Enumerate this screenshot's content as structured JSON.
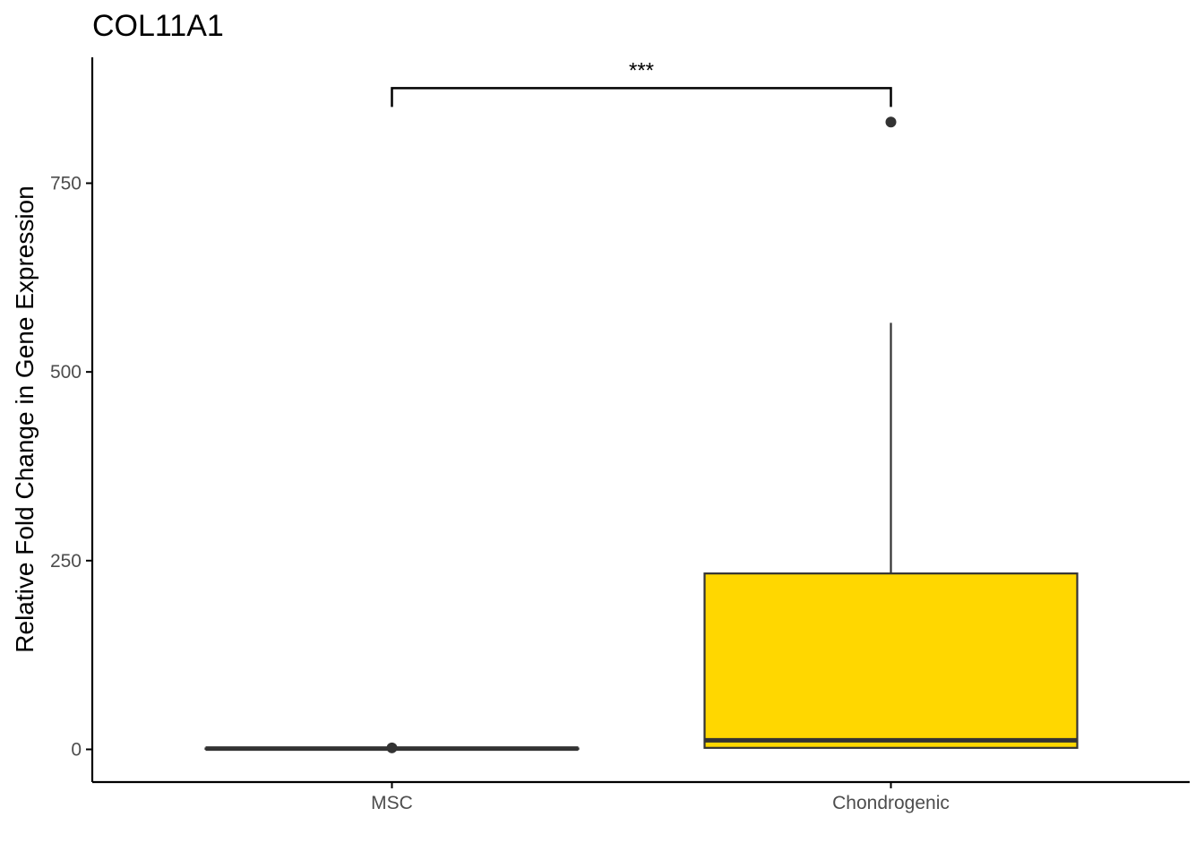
{
  "chart_data": {
    "type": "box",
    "title": "COL11A1",
    "xlabel": "",
    "ylabel": "Relative Fold Change in Gene Expression",
    "categories": [
      "MSC",
      "Chondrogenic"
    ],
    "yticks": [
      0,
      250,
      500,
      750
    ],
    "ytick_labels": [
      "0",
      "250",
      "500",
      "750"
    ],
    "ylim": [
      -42,
      915
    ],
    "grid": false,
    "legend": "none",
    "boxes": [
      {
        "category": "MSC",
        "min": 0.5,
        "q1": 0.8,
        "median": 1.0,
        "q3": 1.2,
        "max": 1.5,
        "outliers": [
          2
        ],
        "fill": "#ffffff"
      },
      {
        "category": "Chondrogenic",
        "min": 2,
        "q1": 2,
        "median": 12,
        "q3": 233,
        "max": 565,
        "outliers": [
          831
        ],
        "fill": "#ffd700"
      }
    ],
    "significance": {
      "label": "***",
      "from": "MSC",
      "to": "Chondrogenic",
      "y": 876,
      "tip_y": 851
    },
    "colors": {
      "box_line": "#333333",
      "axis": "#000000",
      "tick_text": "#4d4d4d"
    }
  }
}
